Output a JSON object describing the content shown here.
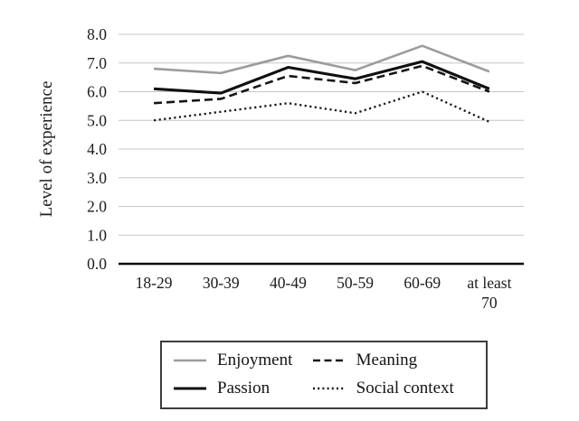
{
  "chart_data": {
    "type": "line",
    "title": "",
    "xlabel": "",
    "ylabel": "Level of experience",
    "ylim": [
      0.0,
      8.0
    ],
    "ytick_step": 1.0,
    "yticks": [
      "0.0",
      "1.0",
      "2.0",
      "3.0",
      "4.0",
      "5.0",
      "6.0",
      "7.0",
      "8.0"
    ],
    "categories": [
      "18-29",
      "30-39",
      "40-49",
      "50-59",
      "60-69",
      "at least\n70"
    ],
    "series": [
      {
        "name": "Enjoyment",
        "values": [
          6.8,
          6.65,
          7.25,
          6.75,
          7.6,
          6.7
        ],
        "color": "#9c9c9c",
        "style": "solid",
        "width": 2.6
      },
      {
        "name": "Meaning",
        "values": [
          5.6,
          5.75,
          6.55,
          6.3,
          6.9,
          6.0
        ],
        "color": "#161616",
        "style": "dashed",
        "width": 2.6
      },
      {
        "name": "Passion",
        "values": [
          6.1,
          5.95,
          6.85,
          6.45,
          7.05,
          6.1
        ],
        "color": "#0f0f0f",
        "style": "solid",
        "width": 3.1
      },
      {
        "name": "Social context",
        "values": [
          5.0,
          5.3,
          5.6,
          5.25,
          6.0,
          4.95
        ],
        "color": "#161616",
        "style": "dotted",
        "width": 2.3
      }
    ],
    "grid": true,
    "legend_position": "bottom"
  },
  "colors": {
    "background": "#ffffff",
    "gridline": "#c6c6c6",
    "axis_line": "#0c0c0c",
    "text": "#1c1c1c",
    "legend_border": "#3c3c3c"
  }
}
